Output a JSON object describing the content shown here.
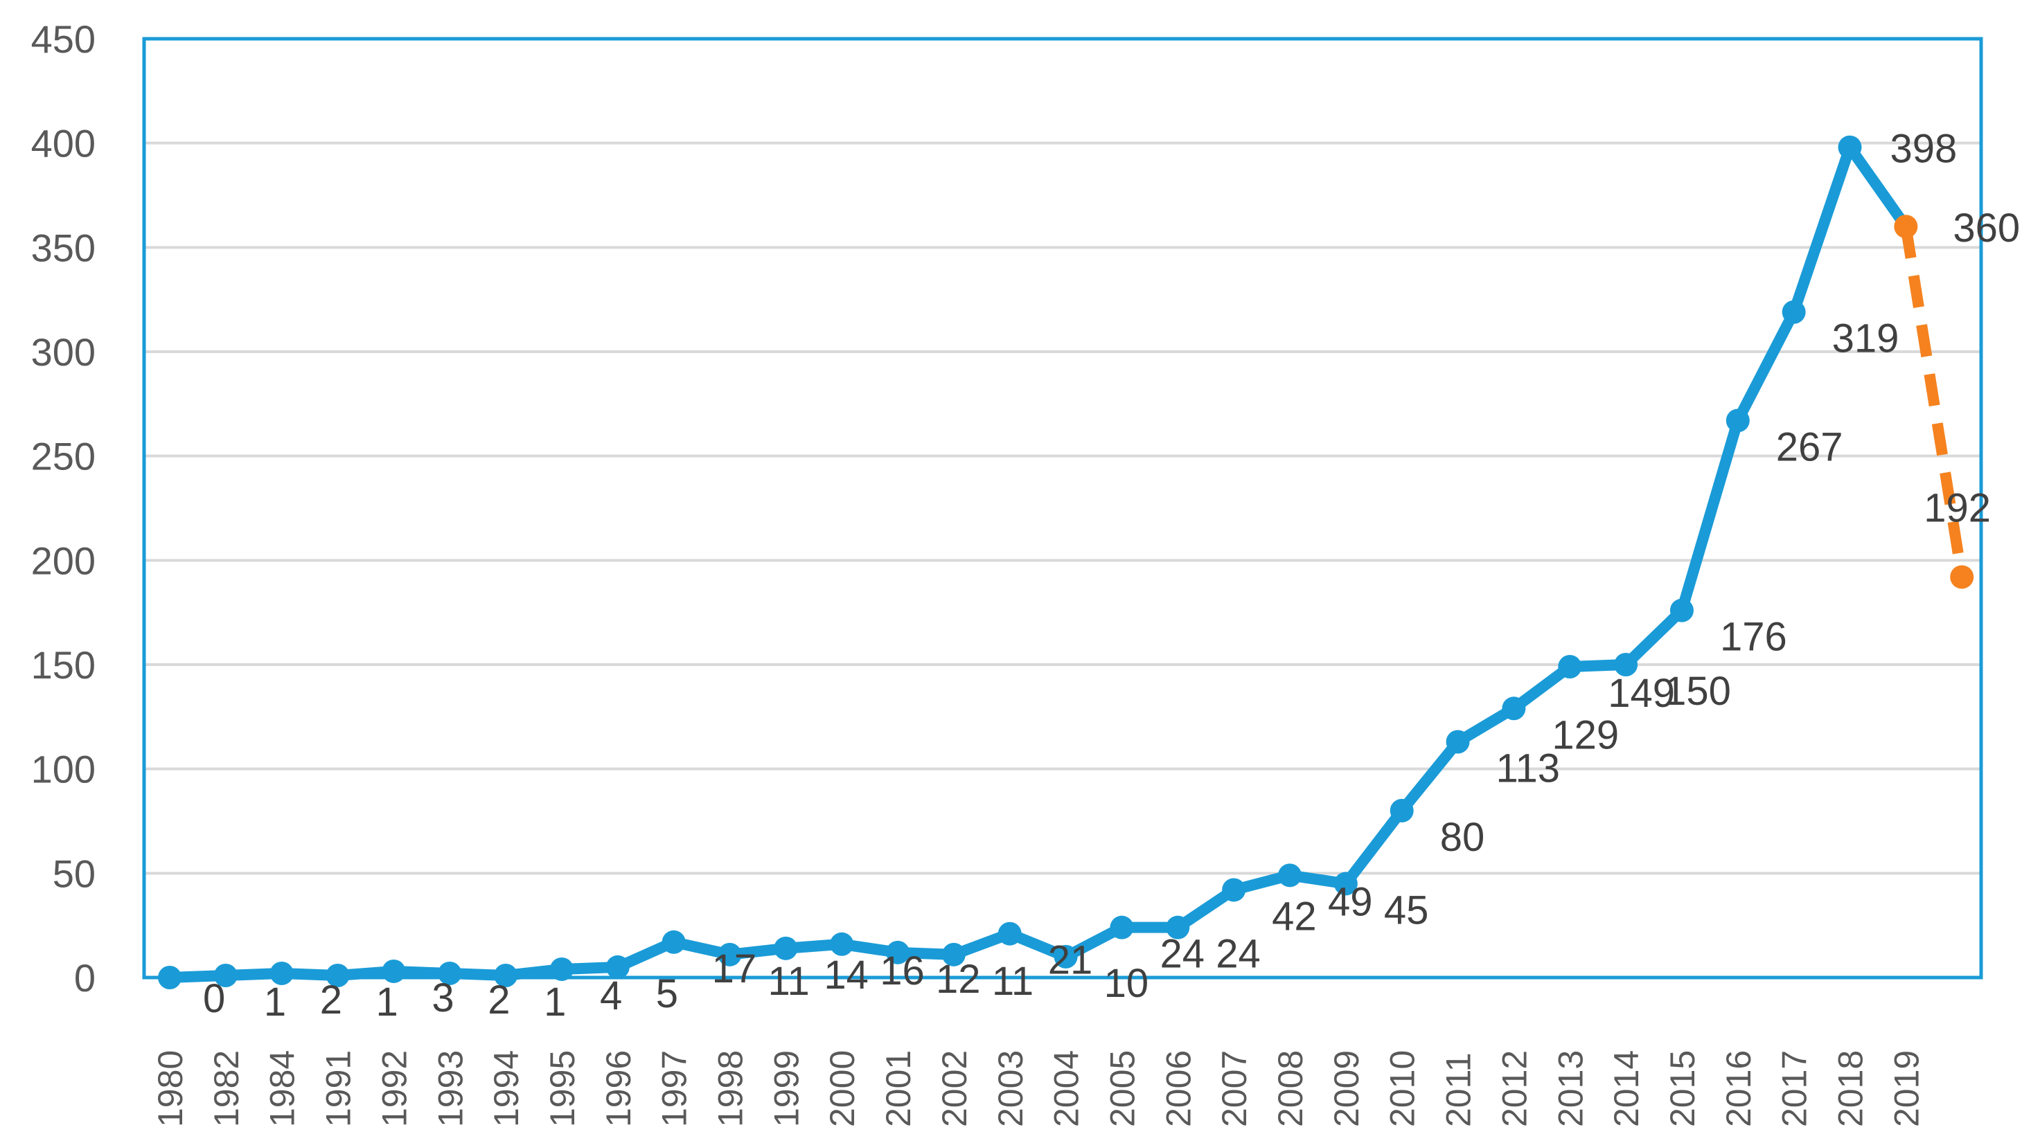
{
  "chart_data": {
    "type": "line",
    "title": "",
    "xlabel": "",
    "ylabel": "",
    "ylim": [
      0,
      450
    ],
    "yticks": [
      "0",
      "50",
      "100",
      "150",
      "200",
      "250",
      "300",
      "350",
      "400",
      "450"
    ],
    "grid": "horizontal",
    "legend": "none",
    "categories": [
      "1980",
      "1982",
      "1984",
      "1991",
      "1992",
      "1993",
      "1994",
      "1995",
      "1996",
      "1997",
      "1998",
      "1999",
      "2000",
      "2001",
      "2002",
      "2003",
      "2004",
      "2005",
      "2006",
      "2007",
      "2008",
      "2009",
      "2010",
      "2011",
      "2012",
      "2013",
      "2014",
      "2015",
      "2016",
      "2017",
      "2018",
      "2019"
    ],
    "series": [
      {
        "style": "solid",
        "color": "#1a9bd7",
        "values": [
          0,
          1,
          2,
          1,
          3,
          2,
          1,
          4,
          5,
          17,
          11,
          14,
          16,
          12,
          11,
          21,
          10,
          24,
          24,
          42,
          49,
          45,
          80,
          113,
          129,
          149,
          150,
          176,
          267,
          319,
          398,
          360
        ],
        "labels": [
          "0",
          "1",
          "2",
          "1",
          "3",
          "2",
          "1",
          "4",
          "5",
          "17",
          "11",
          "14",
          "16",
          "12",
          "11",
          "21",
          "10",
          "24",
          "24",
          "42",
          "49",
          "45",
          "80",
          "113",
          "129",
          "149",
          "150",
          "176",
          "267",
          "319",
          "398",
          "360"
        ]
      },
      {
        "style": "dashed",
        "color": "#f5821f",
        "points": [
          {
            "x_index": 31,
            "value": 360
          },
          {
            "x_index": 32,
            "value": 192
          }
        ],
        "labels": [
          "360",
          "192"
        ]
      }
    ],
    "colors": {
      "plot_border": "#1a9bd7",
      "gridline": "#d9d9d9",
      "tick_text": "#595959",
      "label_text": "#404040"
    }
  }
}
